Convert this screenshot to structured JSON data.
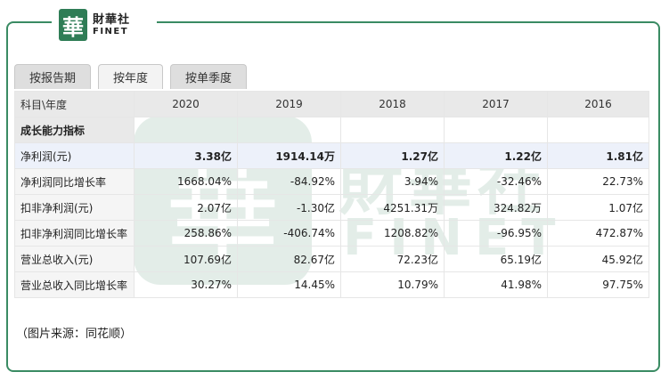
{
  "logo": {
    "mark": "華",
    "cn": "財華社",
    "en": "FINET"
  },
  "tabs": [
    {
      "label": "按报告期",
      "active": false
    },
    {
      "label": "按年度",
      "active": true
    },
    {
      "label": "按单季度",
      "active": false
    }
  ],
  "watermark": {
    "mark": "華",
    "cn": "財華社",
    "en": "FINET"
  },
  "table": {
    "header": [
      "科目\\年度",
      "2020",
      "2019",
      "2018",
      "2017",
      "2016"
    ],
    "section_label": "成长能力指标",
    "rows": [
      {
        "label": "净利润(元)",
        "values": [
          "3.38亿",
          "1914.14万",
          "1.27亿",
          "1.22亿",
          "1.81亿"
        ],
        "highlight": true
      },
      {
        "label": "净利润同比增长率",
        "values": [
          "1668.04%",
          "-84.92%",
          "3.94%",
          "-32.46%",
          "22.73%"
        ]
      },
      {
        "label": "扣非净利润(元)",
        "values": [
          "2.07亿",
          "-1.30亿",
          "4251.31万",
          "324.82万",
          "1.07亿"
        ]
      },
      {
        "label": "扣非净利润同比增长率",
        "values": [
          "258.86%",
          "-406.74%",
          "1208.82%",
          "-96.95%",
          "472.87%"
        ]
      },
      {
        "label": "营业总收入(元)",
        "values": [
          "107.69亿",
          "82.67亿",
          "72.23亿",
          "65.19亿",
          "45.92亿"
        ]
      },
      {
        "label": "营业总收入同比增长率",
        "values": [
          "30.27%",
          "14.45%",
          "10.79%",
          "41.98%",
          "97.75%"
        ]
      }
    ]
  },
  "source_note": "（图片来源：同花顺）",
  "colors": {
    "brand_green": "#2f7d56",
    "frame_border": "#3a8b63",
    "highlight_row": "#edf1fa"
  }
}
